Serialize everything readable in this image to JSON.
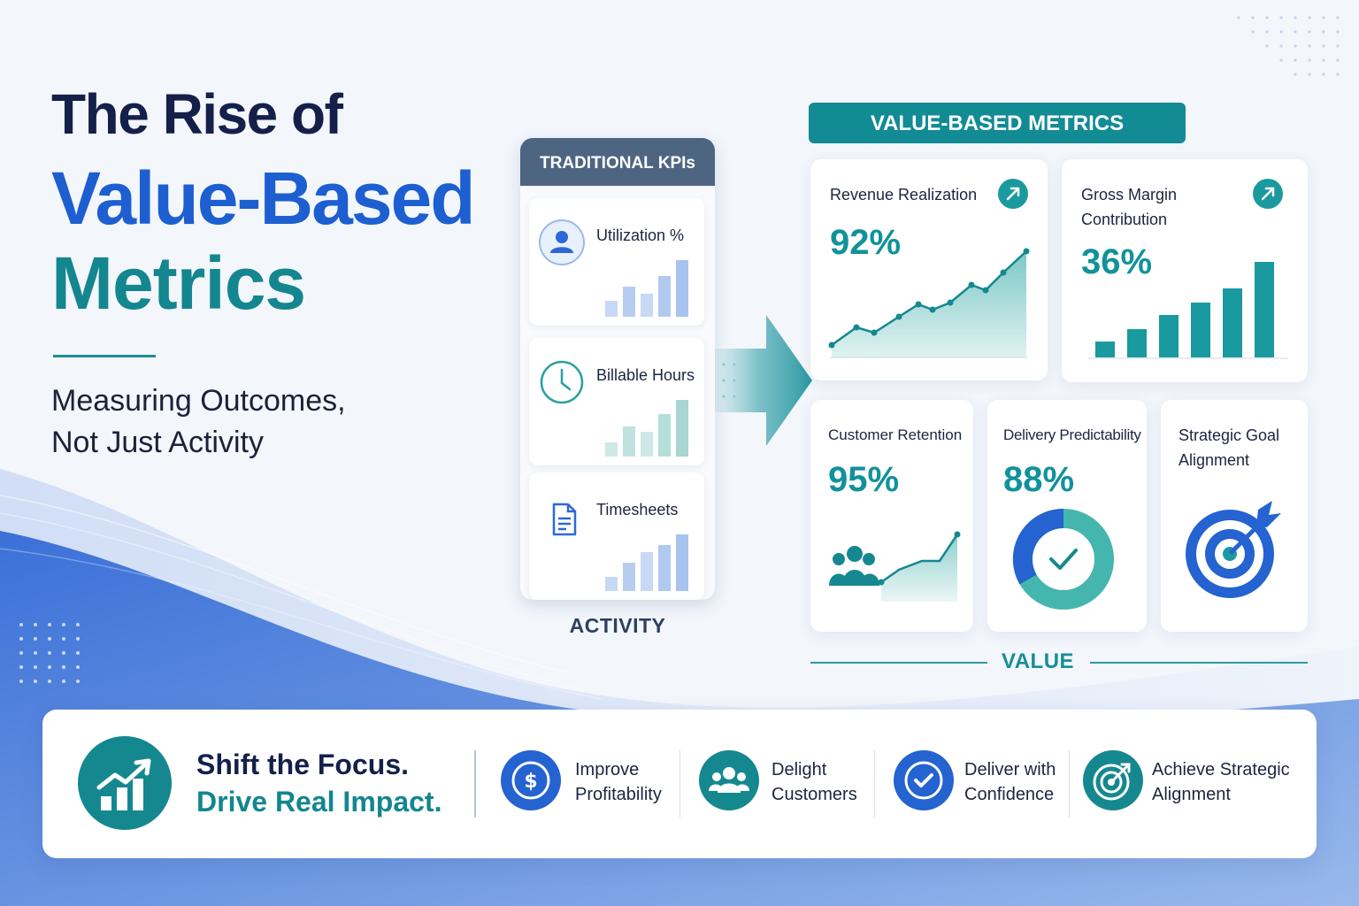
{
  "title": {
    "line1": "The Rise of",
    "line2": "Value-Based",
    "line3": "Metrics",
    "subtitle_line1": "Measuring Outcomes,",
    "subtitle_line2": "Not Just Activity"
  },
  "traditional": {
    "header": "TRADITIONAL KPIs",
    "items": [
      {
        "label": "Utilization %",
        "icon": "user-icon"
      },
      {
        "label": "Billable Hours",
        "icon": "clock-icon"
      },
      {
        "label": "Timesheets",
        "icon": "document-icon"
      }
    ],
    "footer": "ACTIVITY"
  },
  "value_based": {
    "header": "VALUE-BASED METRICS",
    "cards": [
      {
        "title": "Revenue Realization",
        "value": "92%",
        "icon": "arrow-up-right-icon"
      },
      {
        "title_line1": "Gross Margin",
        "title_line2": "Contribution",
        "value": "36%",
        "icon": "arrow-up-right-icon"
      },
      {
        "title": "Customer Retention",
        "value": "95%",
        "icon": "people-icon"
      },
      {
        "title": "Delivery Predictability",
        "value": "88%",
        "icon": "check-circle-icon"
      },
      {
        "title_line1": "Strategic Goal",
        "title_line2": "Alignment",
        "icon": "target-icon"
      }
    ],
    "footer": "VALUE"
  },
  "banner": {
    "line1": "Shift the Focus.",
    "line2": "Drive Real Impact.",
    "items": [
      {
        "line1": "Improve",
        "line2": "Profitability",
        "icon": "dollar-icon"
      },
      {
        "line1": "Delight",
        "line2": "Customers",
        "icon": "people-icon"
      },
      {
        "line1": "Deliver with",
        "line2": "Confidence",
        "icon": "check-circle-icon"
      },
      {
        "line1": "Achieve Strategic",
        "line2": "Alignment",
        "icon": "target-icon"
      }
    ]
  },
  "colors": {
    "navy": "#14204a",
    "blue": "#1d5fd1",
    "teal": "#13868f",
    "slate_header": "#4e6582"
  }
}
